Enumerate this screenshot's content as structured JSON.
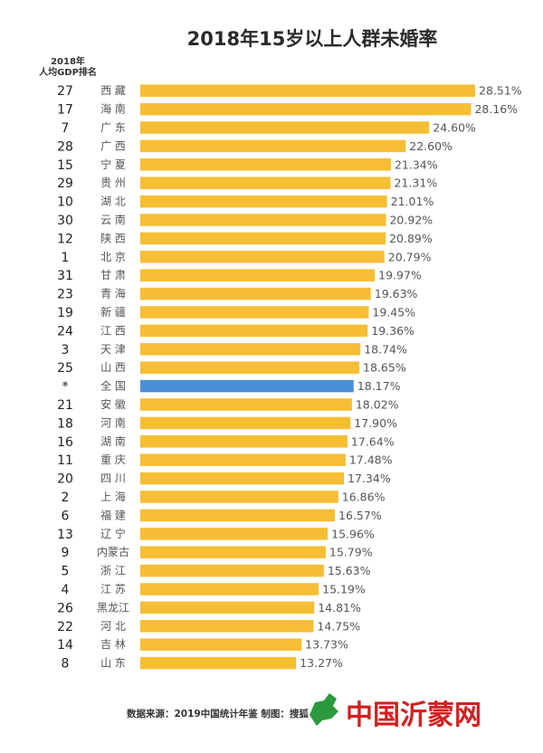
{
  "chart_data": {
    "type": "bar",
    "orientation": "horizontal",
    "title": "2018年15岁以上人群未婚率",
    "rank_header_line1": "2018年",
    "rank_header_line2": "人均GDP排名",
    "value_suffix": "%",
    "xlim": [
      0,
      28.51
    ],
    "grid": false,
    "colors": {
      "default": "#f6be34",
      "highlight": "#4c8fd6"
    },
    "rows": [
      {
        "rank": "27",
        "category": "西 藏",
        "value": 28.51
      },
      {
        "rank": "17",
        "category": "海 南",
        "value": 28.16
      },
      {
        "rank": "7",
        "category": "广 东",
        "value": 24.6
      },
      {
        "rank": "28",
        "category": "广 西",
        "value": 22.6
      },
      {
        "rank": "15",
        "category": "宁 夏",
        "value": 21.34
      },
      {
        "rank": "29",
        "category": "贵 州",
        "value": 21.31
      },
      {
        "rank": "10",
        "category": "湖 北",
        "value": 21.01
      },
      {
        "rank": "30",
        "category": "云 南",
        "value": 20.92
      },
      {
        "rank": "12",
        "category": "陕 西",
        "value": 20.89
      },
      {
        "rank": "1",
        "category": "北 京",
        "value": 20.79
      },
      {
        "rank": "31",
        "category": "甘 肃",
        "value": 19.97
      },
      {
        "rank": "23",
        "category": "青 海",
        "value": 19.63
      },
      {
        "rank": "19",
        "category": "新 疆",
        "value": 19.45
      },
      {
        "rank": "24",
        "category": "江 西",
        "value": 19.36
      },
      {
        "rank": "3",
        "category": "天 津",
        "value": 18.74
      },
      {
        "rank": "25",
        "category": "山 西",
        "value": 18.65
      },
      {
        "rank": "*",
        "category": "全 国",
        "value": 18.17,
        "highlight": true
      },
      {
        "rank": "21",
        "category": "安 徽",
        "value": 18.02
      },
      {
        "rank": "18",
        "category": "河 南",
        "value": 17.9
      },
      {
        "rank": "16",
        "category": "湖 南",
        "value": 17.64
      },
      {
        "rank": "11",
        "category": "重 庆",
        "value": 17.48
      },
      {
        "rank": "20",
        "category": "四 川",
        "value": 17.34
      },
      {
        "rank": "2",
        "category": "上 海",
        "value": 16.86
      },
      {
        "rank": "6",
        "category": "福 建",
        "value": 16.57
      },
      {
        "rank": "13",
        "category": "辽 宁",
        "value": 15.96
      },
      {
        "rank": "9",
        "category": "内蒙古",
        "value": 15.79
      },
      {
        "rank": "5",
        "category": "浙 江",
        "value": 15.63
      },
      {
        "rank": "4",
        "category": "江 苏",
        "value": 15.19
      },
      {
        "rank": "26",
        "category": "黑龙江",
        "value": 14.81
      },
      {
        "rank": "22",
        "category": "河 北",
        "value": 14.75
      },
      {
        "rank": "14",
        "category": "吉 林",
        "value": 13.73
      },
      {
        "rank": "8",
        "category": "山 东",
        "value": 13.27
      }
    ],
    "source": "数据来源：2019中国统计年鉴  制图：搜狐"
  },
  "logo": {
    "text": "中国沂蒙网",
    "color": "#d41f1f",
    "icon": "green-map-icon"
  }
}
